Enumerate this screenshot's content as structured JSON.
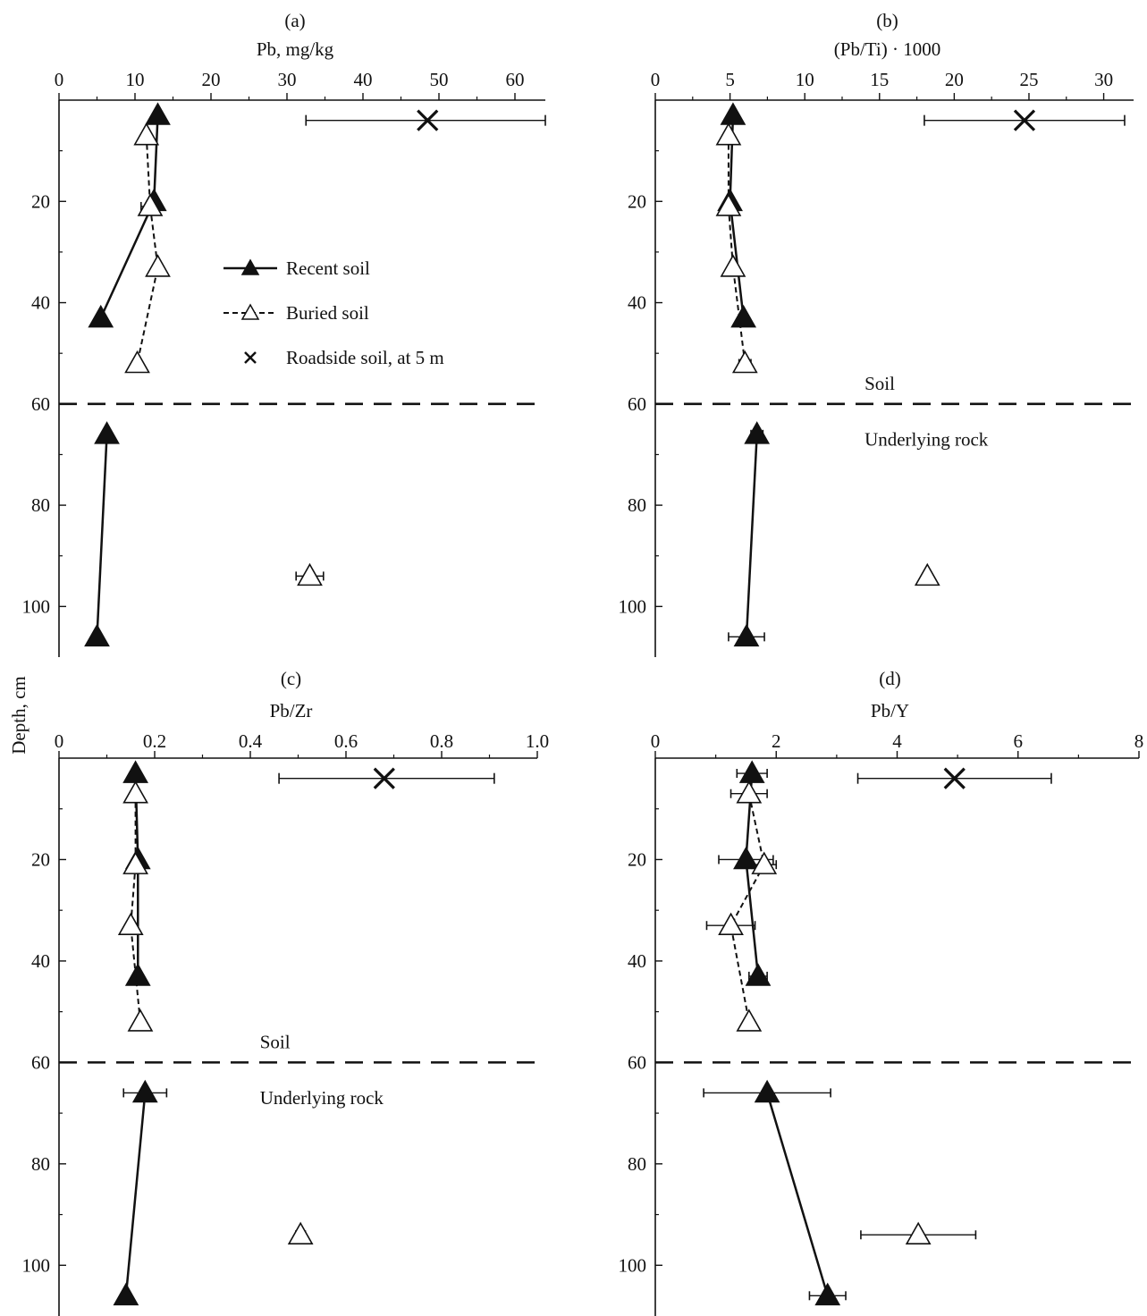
{
  "figure": {
    "y_axis_title": "Depth, cm",
    "legend": [
      {
        "label": "Recent soil",
        "marker": "filled-triangle",
        "line": "solid"
      },
      {
        "label": "Buried soil",
        "marker": "open-triangle",
        "line": "dashed"
      },
      {
        "label": "Roadside soil, at 5 m",
        "marker": "cross",
        "line": "none"
      }
    ],
    "colors": {
      "ink": "#111111",
      "background": "#ffffff"
    }
  },
  "chart_data": [
    {
      "panel": "(a)",
      "type": "line",
      "xlabel": "Pb, mg/kg",
      "ylabel": "Depth, cm",
      "xlim": [
        0,
        64
      ],
      "xticks": [
        0,
        10,
        20,
        30,
        40,
        50,
        60
      ],
      "xtick_labels": [
        "0",
        "10",
        "20",
        "30",
        "40",
        "50",
        "60"
      ],
      "ylim": [
        110,
        0
      ],
      "yticks": [
        20,
        40,
        60,
        80,
        100
      ],
      "ytick_labels": [
        "20",
        "40",
        "60",
        "80",
        "100"
      ],
      "boundary_depth": 60,
      "annotations": [],
      "series": [
        {
          "name": "Recent soil",
          "marker": "filled",
          "line": "solid",
          "segments": [
            [
              {
                "x": 13,
                "y": 3
              },
              {
                "x": 12.5,
                "y": 20
              },
              {
                "x": 5.5,
                "y": 43
              }
            ],
            [
              {
                "x": 6.3,
                "y": 66
              },
              {
                "x": 5,
                "y": 106
              }
            ]
          ]
        },
        {
          "name": "Buried soil",
          "marker": "open",
          "line": "dashed",
          "segments": [
            [
              {
                "x": 11.5,
                "y": 7,
                "err": 0.5
              },
              {
                "x": 12,
                "y": 21,
                "err": 1.2
              },
              {
                "x": 13,
                "y": 33,
                "err": 0.4
              },
              {
                "x": 10.3,
                "y": 52,
                "err": 0.3
              }
            ]
          ],
          "extra_points": [
            {
              "x": 33,
              "y": 94,
              "err": 1.8
            }
          ]
        },
        {
          "name": "Roadside soil, at 5 m",
          "marker": "cross",
          "points": [
            {
              "x": 48.5,
              "y": 4,
              "xerr_low": 32.5,
              "xerr_high": 64
            }
          ]
        }
      ]
    },
    {
      "panel": "(b)",
      "type": "line",
      "xlabel": "(Pb/Ti) · 1000",
      "ylabel": "Depth, cm",
      "xlim": [
        0,
        32
      ],
      "xticks": [
        0,
        5,
        10,
        15,
        20,
        25,
        30
      ],
      "xtick_labels": [
        "0",
        "5",
        "10",
        "15",
        "20",
        "25",
        "30"
      ],
      "ylim": [
        110,
        0
      ],
      "yticks": [
        20,
        40,
        60,
        80,
        100
      ],
      "ytick_labels": [
        "20",
        "40",
        "60",
        "80",
        "100"
      ],
      "boundary_depth": 60,
      "annotations": [
        {
          "text": "Soil",
          "x": 14,
          "y": 56
        },
        {
          "text": "Underlying rock",
          "x": 14,
          "y": 67
        }
      ],
      "series": [
        {
          "name": "Recent soil",
          "marker": "filled",
          "line": "solid",
          "segments": [
            [
              {
                "x": 5.2,
                "y": 3
              },
              {
                "x": 5,
                "y": 20
              },
              {
                "x": 5.9,
                "y": 43
              }
            ],
            [
              {
                "x": 6.8,
                "y": 66,
                "err": 0.4
              },
              {
                "x": 6.1,
                "y": 106,
                "err": 1.2
              }
            ]
          ]
        },
        {
          "name": "Buried soil",
          "marker": "open",
          "line": "dashed",
          "segments": [
            [
              {
                "x": 4.9,
                "y": 7
              },
              {
                "x": 4.9,
                "y": 21
              },
              {
                "x": 5.2,
                "y": 33
              },
              {
                "x": 6,
                "y": 52,
                "err": 0.4
              }
            ]
          ],
          "extra_points": [
            {
              "x": 18.2,
              "y": 94,
              "err": 0.15
            }
          ]
        },
        {
          "name": "Roadside soil, at 5 m",
          "marker": "cross",
          "points": [
            {
              "x": 24.7,
              "y": 4,
              "xerr_low": 18,
              "xerr_high": 31.4
            }
          ]
        }
      ]
    },
    {
      "panel": "(c)",
      "type": "line",
      "xlabel": "Pb/Zr",
      "ylabel": "Depth, cm",
      "xlim": [
        0,
        1.0
      ],
      "xticks": [
        0,
        0.2,
        0.4,
        0.6,
        0.8,
        1.0
      ],
      "xtick_labels": [
        "0",
        "0.2",
        "0.4",
        "0.6",
        "0.8",
        "1.0"
      ],
      "ylim": [
        110,
        0
      ],
      "yticks": [
        20,
        40,
        60,
        80,
        100
      ],
      "ytick_labels": [
        "20",
        "40",
        "60",
        "80",
        "100"
      ],
      "boundary_depth": 60,
      "annotations": [
        {
          "text": "Soil",
          "x": 0.42,
          "y": 56
        },
        {
          "text": "Underlying rock",
          "x": 0.42,
          "y": 67
        }
      ],
      "series": [
        {
          "name": "Recent soil",
          "marker": "filled",
          "line": "solid",
          "segments": [
            [
              {
                "x": 0.16,
                "y": 3
              },
              {
                "x": 0.165,
                "y": 20
              },
              {
                "x": 0.165,
                "y": 43
              }
            ],
            [
              {
                "x": 0.18,
                "y": 66,
                "err": 0.045
              },
              {
                "x": 0.14,
                "y": 106
              }
            ]
          ]
        },
        {
          "name": "Buried soil",
          "marker": "open",
          "line": "dashed",
          "segments": [
            [
              {
                "x": 0.16,
                "y": 7
              },
              {
                "x": 0.16,
                "y": 21
              },
              {
                "x": 0.15,
                "y": 33
              },
              {
                "x": 0.17,
                "y": 52,
                "err": 0.005
              }
            ]
          ],
          "extra_points": [
            {
              "x": 0.505,
              "y": 94,
              "err": 0.01
            }
          ]
        },
        {
          "name": "Roadside soil, at 5 m",
          "marker": "cross",
          "points": [
            {
              "x": 0.68,
              "y": 4,
              "xerr_low": 0.46,
              "xerr_high": 0.91
            }
          ]
        }
      ]
    },
    {
      "panel": "(d)",
      "type": "line",
      "xlabel": "Pb/Y",
      "ylabel": "Depth, cm",
      "xlim": [
        0,
        8
      ],
      "xticks": [
        0,
        2,
        4,
        6,
        8
      ],
      "xtick_labels": [
        "0",
        "2",
        "4",
        "6",
        "8"
      ],
      "ylim": [
        110,
        0
      ],
      "yticks": [
        20,
        40,
        60,
        80,
        100
      ],
      "ytick_labels": [
        "20",
        "40",
        "60",
        "80",
        "100"
      ],
      "boundary_depth": 60,
      "annotations": [],
      "series": [
        {
          "name": "Recent soil",
          "marker": "filled",
          "line": "solid",
          "segments": [
            [
              {
                "x": 1.6,
                "y": 3,
                "err": 0.25
              },
              {
                "x": 1.5,
                "y": 20,
                "err": 0.45
              },
              {
                "x": 1.7,
                "y": 43,
                "err": 0.15
              }
            ],
            [
              {
                "x": 1.85,
                "y": 66,
                "err": 1.05
              },
              {
                "x": 2.85,
                "y": 106,
                "err": 0.3
              }
            ]
          ]
        },
        {
          "name": "Buried soil",
          "marker": "open",
          "line": "dashed",
          "segments": [
            [
              {
                "x": 1.55,
                "y": 7,
                "err": 0.3
              },
              {
                "x": 1.8,
                "y": 21,
                "err": 0.2
              },
              {
                "x": 1.25,
                "y": 33,
                "err": 0.4
              },
              {
                "x": 1.55,
                "y": 52
              }
            ]
          ],
          "extra_points": [
            {
              "x": 4.35,
              "y": 94,
              "err": 0.95
            }
          ]
        },
        {
          "name": "Roadside soil, at 5 m",
          "marker": "cross",
          "points": [
            {
              "x": 4.95,
              "y": 4,
              "xerr_low": 3.35,
              "xerr_high": 6.55
            }
          ]
        }
      ]
    }
  ]
}
